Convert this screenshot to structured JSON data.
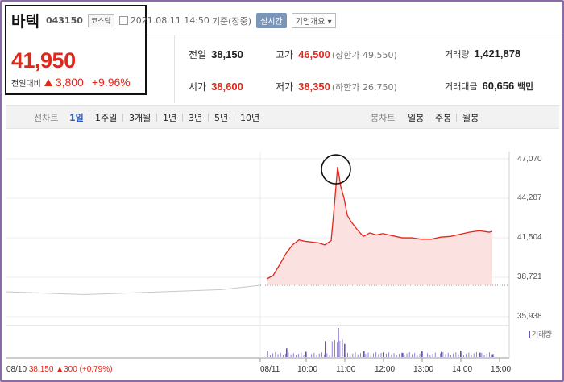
{
  "header": {
    "stock_name": "바텍",
    "stock_code": "043150",
    "market": "코스닥",
    "datetime": "2021.08.11 14:50",
    "basis": "기준(장중)",
    "realtime": "실시간",
    "company_overview": "기업개요 ▾"
  },
  "quote": {
    "price": "41,950",
    "change_label": "전일대비",
    "change": "3,800",
    "change_pct": "+9.96%"
  },
  "stats": {
    "prev_close": {
      "label": "전일",
      "value": "38,150"
    },
    "high": {
      "label": "고가",
      "value": "46,500",
      "sub": "(상한가 49,550)"
    },
    "volume": {
      "label": "거래량",
      "value": "1,421,878"
    },
    "open": {
      "label": "시가",
      "value": "38,600"
    },
    "low": {
      "label": "저가",
      "value": "38,350",
      "sub": "(하한가 26,750)"
    },
    "amount": {
      "label": "거래대금",
      "value": "60,656",
      "unit": "백만"
    }
  },
  "periods": {
    "line_chart": "선차트",
    "items": [
      "1일",
      "1주일",
      "3개월",
      "1년",
      "3년",
      "5년",
      "10년"
    ],
    "active": "1일",
    "candle_chart": "봉차트",
    "candle_items": [
      "일봉",
      "주봉",
      "월봉"
    ]
  },
  "colors": {
    "up": "#e2261a",
    "accent": "#2c5bc5",
    "prev_line": "#c8c8c8",
    "volume": "#6a4fc7"
  },
  "footer": {
    "date": "08/10",
    "price": "38,150",
    "change": "▲300",
    "pct": "(+0,79%)"
  },
  "chart_data": {
    "type": "line",
    "ylim": [
      35938,
      47070
    ],
    "yticks": [
      "47,070",
      "44,287",
      "41,504",
      "38,721",
      "35,938"
    ],
    "xticks": [
      "08/11",
      "10:00",
      "11:00",
      "12:00",
      "13:00",
      "14:00",
      "15:00"
    ],
    "prev_close": 38150,
    "volume_label": "거래량",
    "series": [
      {
        "day": "08/10",
        "x": [
          "09:00",
          "09:30",
          "10:00",
          "10:30",
          "11:00",
          "11:30",
          "12:00",
          "12:30",
          "13:00",
          "13:30",
          "14:00",
          "14:30",
          "15:00",
          "15:30"
        ],
        "values": [
          37700,
          37650,
          37600,
          37550,
          37500,
          37550,
          37600,
          37650,
          37700,
          37750,
          37800,
          37850,
          38000,
          38150
        ]
      },
      {
        "day": "08/11",
        "x": [
          "09:00",
          "09:10",
          "09:20",
          "09:30",
          "09:40",
          "09:50",
          "10:00",
          "10:10",
          "10:20",
          "10:30",
          "10:40",
          "10:45",
          "10:50",
          "10:55",
          "11:00",
          "11:05",
          "11:10",
          "11:20",
          "11:30",
          "11:40",
          "11:50",
          "12:00",
          "12:15",
          "12:30",
          "12:45",
          "13:00",
          "13:15",
          "13:30",
          "13:45",
          "14:00",
          "14:15",
          "14:30",
          "14:45",
          "14:50"
        ],
        "values": [
          38600,
          38850,
          39600,
          40400,
          41000,
          41350,
          41250,
          41200,
          41150,
          41000,
          41300,
          43800,
          46500,
          45100,
          44300,
          43100,
          42700,
          42100,
          41600,
          41850,
          41700,
          41800,
          41650,
          41500,
          41500,
          41400,
          41400,
          41550,
          41600,
          41750,
          41900,
          42000,
          41900,
          41950
        ]
      }
    ],
    "volume": {
      "x": [
        "09:00",
        "09:30",
        "10:00",
        "10:30",
        "10:50",
        "11:00",
        "11:30",
        "12:00",
        "12:30",
        "13:00",
        "13:30",
        "14:00",
        "14:30",
        "14:50"
      ],
      "values": [
        0.22,
        0.3,
        0.18,
        0.55,
        1.0,
        0.45,
        0.2,
        0.16,
        0.14,
        0.2,
        0.18,
        0.22,
        0.15,
        0.1
      ]
    }
  }
}
